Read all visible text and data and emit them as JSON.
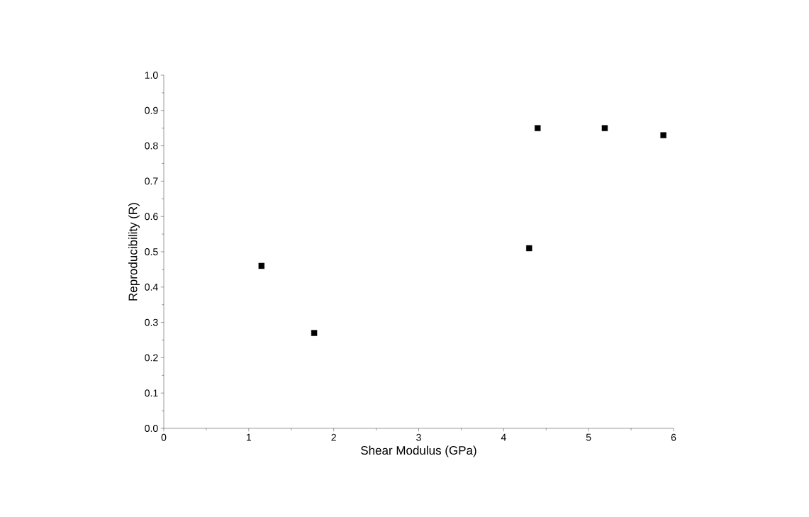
{
  "chart_data": {
    "type": "scatter",
    "xlabel": "Shear Modulus (GPa)",
    "ylabel": "Reproducibility (R)",
    "x": [
      1.15,
      1.77,
      4.3,
      4.4,
      5.19,
      5.88
    ],
    "values": [
      0.46,
      0.27,
      0.51,
      0.85,
      0.85,
      0.83
    ],
    "color": "#000000",
    "marker": "square",
    "xlim": [
      0,
      6
    ],
    "xticks": [
      0,
      1,
      2,
      3,
      4,
      5,
      6
    ],
    "ylim": [
      0,
      1
    ],
    "yticks": [
      {
        "value": 0,
        "label": "0.0"
      },
      {
        "value": 0.1,
        "label": "0.1"
      },
      {
        "value": 0.2,
        "label": "0.2"
      },
      {
        "value": 0.3,
        "label": "0.3"
      },
      {
        "value": 0.4,
        "label": "0.4"
      },
      {
        "value": 0.5,
        "label": "0.5"
      },
      {
        "value": 0.6,
        "label": "0.6"
      },
      {
        "value": 0.7,
        "label": "0.7"
      },
      {
        "value": 0.8,
        "label": "0.8"
      },
      {
        "value": 0.9,
        "label": "0.9"
      },
      {
        "value": 1,
        "label": "1.0"
      }
    ],
    "grid": false
  }
}
